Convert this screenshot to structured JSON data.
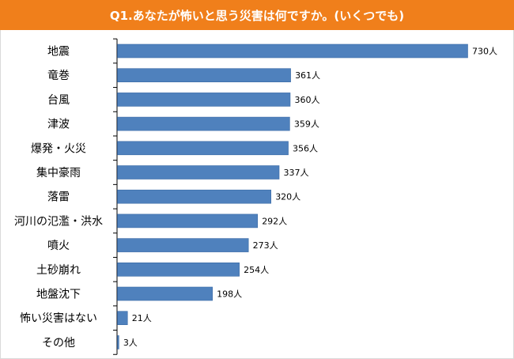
{
  "chart_data": {
    "type": "bar",
    "orientation": "horizontal",
    "title": "Q1.あなたが怖いと思う災害は何ですか。(いくつでも)",
    "categories": [
      "地震",
      "竜巻",
      "台風",
      "津波",
      "爆発・火災",
      "集中豪雨",
      "落雷",
      "河川の氾濫・洪水",
      "噴火",
      "土砂崩れ",
      "地盤沈下",
      "怖い災害はない",
      "その他"
    ],
    "values": [
      730,
      361,
      360,
      359,
      356,
      337,
      320,
      292,
      273,
      254,
      198,
      21,
      3
    ],
    "data_labels": [
      "730人",
      "361人",
      "360人",
      "359人",
      "356人",
      "337人",
      "320人",
      "292人",
      "273人",
      "254人",
      "198人",
      "21人",
      "3人"
    ],
    "xlim": [
      0,
      730
    ],
    "grid": false,
    "legend": "none"
  },
  "colors": {
    "title_bg": "#f07f1b",
    "bar": "#4f81bd",
    "bar_stroke": "#3a6aa5",
    "axis": "#000000"
  }
}
